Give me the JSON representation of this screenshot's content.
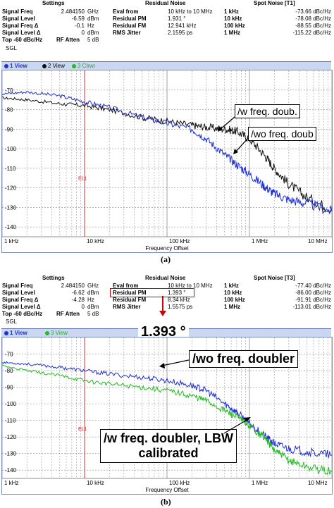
{
  "panel_a": {
    "header": {
      "settings_title": "Settings",
      "residual_title": "Residual Noise",
      "spot_title": "Spot Noise [T1]",
      "settings_rows": [
        {
          "label": "Signal Freq",
          "value": "2.484150",
          "unit": "GHz"
        },
        {
          "label": "Signal Level",
          "value": "-6.59",
          "unit": "dBm"
        },
        {
          "label": "Signal Freq Δ",
          "value": "-0.1",
          "unit": "Hz"
        },
        {
          "label": "Signal Level Δ",
          "value": "0",
          "unit": "dBm"
        }
      ],
      "top_text": "Top -60 dBc/Hz",
      "rf_atten_label": "RF Atten",
      "rf_atten_value": "5 dB",
      "residual_rows": [
        {
          "label": "Eval from",
          "value": "10 kHz to 10 MHz"
        },
        {
          "label": "Residual PM",
          "value": "1.931 °"
        },
        {
          "label": "Residual FM",
          "value": "12.941 kHz"
        },
        {
          "label": "RMS Jitter",
          "value": "2.1595 ps"
        }
      ],
      "spot_rows": [
        {
          "label": "1 kHz",
          "value": "-73.66 dBc/Hz"
        },
        {
          "label": "10 kHz",
          "value": "-78.08 dBc/Hz"
        },
        {
          "label": "100 kHz",
          "value": "-88.55 dBc/Hz"
        },
        {
          "label": "1 MHz",
          "value": "-115.22 dBc/Hz"
        }
      ],
      "sgl": "SGL"
    },
    "legend": [
      {
        "label": "1 View",
        "color": "#1f2fd0"
      },
      {
        "label": "2 View",
        "color": "#111111"
      },
      {
        "label": "3 Clrwr",
        "color": "#22bb22"
      }
    ],
    "callouts": {
      "top": "/w freq. doub.",
      "bottom": "/wo freq. doub"
    },
    "caption": "(a)"
  },
  "panel_b": {
    "header": {
      "settings_title": "Settings",
      "residual_title": "Residual Noise",
      "spot_title": "Spot Noise [T3]",
      "settings_rows": [
        {
          "label": "Signal Freq",
          "value": "2.484150",
          "unit": "GHz"
        },
        {
          "label": "Signal Level",
          "value": "-6.62",
          "unit": "dBm"
        },
        {
          "label": "Signal Freq Δ",
          "value": "-4.28",
          "unit": "Hz"
        },
        {
          "label": "Signal Level Δ",
          "value": "0",
          "unit": "dBm"
        }
      ],
      "top_text": "Top -60 dBc/Hz",
      "rf_atten_label": "RF Atten",
      "rf_atten_value": "5 dB",
      "residual_rows": [
        {
          "label": "Eval from",
          "value": "10 kHz to 10 MHz"
        },
        {
          "label": "Residual PM",
          "value": "1.393 °"
        },
        {
          "label": "Residual FM",
          "value": "8.34 kHz"
        },
        {
          "label": "RMS Jitter",
          "value": "1.5575 ps"
        }
      ],
      "spot_rows": [
        {
          "label": "1 kHz",
          "value": "-77.40 dBc/Hz"
        },
        {
          "label": "10 kHz",
          "value": "-86.00 dBc/Hz"
        },
        {
          "label": "100 kHz",
          "value": "-91.91 dBc/Hz"
        },
        {
          "label": "1 MHz",
          "value": "-113.01 dBc/Hz"
        }
      ],
      "sgl": "SGL"
    },
    "legend": [
      {
        "label": "1 View",
        "color": "#1f2fd0"
      },
      {
        "label": "3 View",
        "color": "#22bb22"
      }
    ],
    "big_label": "1.393 °",
    "callouts": {
      "top": "/wo freq. doubler",
      "bottom_line1": "/w freq. doubler, LBW",
      "bottom_line2": "calibrated"
    },
    "caption": "(b)"
  },
  "chart_data": [
    {
      "type": "line",
      "xlabel": "Frequency Offset",
      "x_scale": "log",
      "xlim": [
        1000,
        10000000
      ],
      "ylim": [
        -145,
        -60
      ],
      "yticks": [
        -70,
        -80,
        -90,
        -100,
        -110,
        -120,
        -130,
        -140
      ],
      "xtick_labels": [
        "1 kHz",
        "10 kHz",
        "100 kHz",
        "1 MHz",
        "10 MHz"
      ],
      "xtick_values": [
        1000,
        10000,
        100000,
        1000000,
        10000000
      ],
      "marker_label": "EL1",
      "marker_x": 10000,
      "series": [
        {
          "name": "/w freq. doub.",
          "color": "#111111",
          "x": [
            1000,
            2000,
            5000,
            10000,
            20000,
            50000,
            100000,
            200000,
            300000,
            500000,
            700000,
            1000000,
            1500000,
            2000000,
            3000000,
            5000000,
            10000000
          ],
          "y": [
            -74,
            -75,
            -77,
            -78,
            -80,
            -84,
            -86,
            -88,
            -89,
            -90,
            -91,
            -95,
            -103,
            -110,
            -118,
            -125,
            -131
          ]
        },
        {
          "name": "/wo freq. doub",
          "color": "#1f2fd0",
          "x": [
            1000,
            2000,
            5000,
            10000,
            20000,
            50000,
            100000,
            200000,
            300000,
            500000,
            700000,
            1000000,
            1500000,
            2000000,
            3000000,
            5000000,
            10000000
          ],
          "y": [
            -72,
            -71,
            -73,
            -76,
            -79,
            -84,
            -87,
            -90,
            -95,
            -103,
            -108,
            -113,
            -119,
            -123,
            -126,
            -128,
            -132
          ]
        }
      ]
    },
    {
      "type": "line",
      "xlabel": "Frequency Offset",
      "x_scale": "log",
      "xlim": [
        1000,
        10000000
      ],
      "ylim": [
        -145,
        -60
      ],
      "yticks": [
        -70,
        -80,
        -90,
        -100,
        -110,
        -120,
        -130,
        -140
      ],
      "xtick_labels": [
        "1 kHz",
        "10 kHz",
        "100 kHz",
        "1 MHz",
        "10 MHz"
      ],
      "xtick_values": [
        1000,
        10000,
        100000,
        1000000,
        10000000
      ],
      "marker_label": "EL1",
      "marker_x": 10000,
      "series": [
        {
          "name": "/wo freq. doubler",
          "color": "#1f2fd0",
          "x": [
            1000,
            2000,
            5000,
            10000,
            20000,
            50000,
            100000,
            200000,
            300000,
            500000,
            700000,
            1000000,
            1500000,
            2000000,
            3000000,
            5000000,
            10000000
          ],
          "y": [
            -75,
            -76,
            -78,
            -80,
            -82,
            -84,
            -86,
            -89,
            -92,
            -100,
            -105,
            -112,
            -119,
            -124,
            -127,
            -129,
            -131
          ]
        },
        {
          "name": "/w freq. doubler, LBW calibrated",
          "color": "#22bb22",
          "x": [
            1000,
            2000,
            5000,
            10000,
            20000,
            50000,
            100000,
            200000,
            300000,
            500000,
            700000,
            1000000,
            1500000,
            2000000,
            3000000,
            5000000,
            10000000
          ],
          "y": [
            -77,
            -80,
            -83,
            -86,
            -88,
            -90,
            -92,
            -95,
            -98,
            -104,
            -108,
            -113,
            -120,
            -128,
            -134,
            -138,
            -141
          ]
        }
      ]
    }
  ]
}
